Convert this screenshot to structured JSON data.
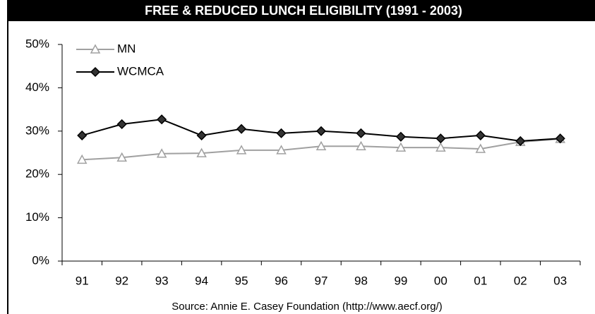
{
  "chart_data": {
    "type": "line",
    "title": "FREE & REDUCED LUNCH ELIGIBILITY (1991 - 2003)",
    "source": "Source: Annie E. Casey Foundation (http://www.aecf.org/)",
    "categories": [
      "91",
      "92",
      "93",
      "94",
      "95",
      "96",
      "97",
      "98",
      "99",
      "00",
      "01",
      "02",
      "03"
    ],
    "series": [
      {
        "name": "MN",
        "color": "#a0a0a0",
        "marker": "triangle",
        "values": [
          23.4,
          23.9,
          24.8,
          24.9,
          25.6,
          25.6,
          26.5,
          26.5,
          26.2,
          26.2,
          25.9,
          27.5,
          28.2
        ]
      },
      {
        "name": "WCMCA",
        "color": "#000000",
        "marker": "diamond",
        "values": [
          29.0,
          31.6,
          32.7,
          29.0,
          30.5,
          29.5,
          30.0,
          29.5,
          28.7,
          28.3,
          29.0,
          27.7,
          28.3
        ]
      }
    ],
    "ylim": [
      0,
      50
    ],
    "yticks": [
      {
        "value": 0,
        "label": "0%"
      },
      {
        "value": 10,
        "label": "10%"
      },
      {
        "value": 20,
        "label": "20%"
      },
      {
        "value": 30,
        "label": "30%"
      },
      {
        "value": 40,
        "label": "40%"
      },
      {
        "value": 50,
        "label": "50%"
      }
    ],
    "legend": "upper left",
    "grid": false
  }
}
